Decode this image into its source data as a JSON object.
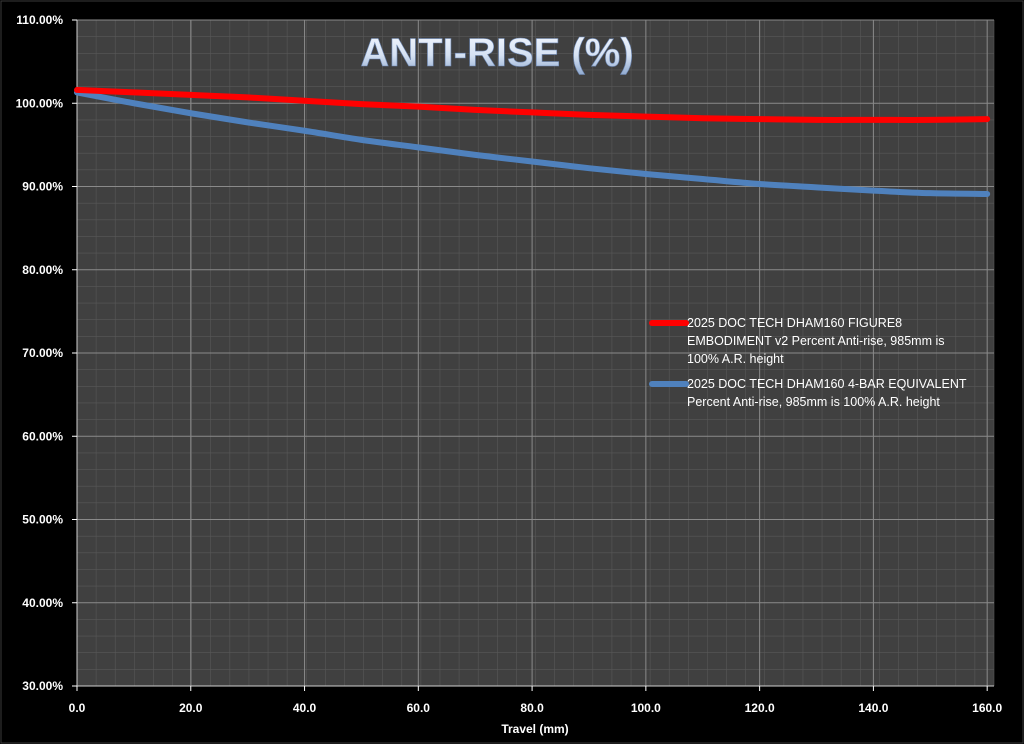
{
  "chart_data": {
    "type": "line",
    "title": "ANTI-RISE (%)",
    "xlabel": "Travel (mm)",
    "ylabel": "",
    "xlim": [
      0,
      160
    ],
    "ylim": [
      30,
      110
    ],
    "x_ticks": [
      "0.0",
      "20.0",
      "40.0",
      "60.0",
      "80.0",
      "100.0",
      "120.0",
      "140.0",
      "160.0"
    ],
    "y_ticks": [
      "30.00%",
      "40.00%",
      "50.00%",
      "60.00%",
      "70.00%",
      "80.00%",
      "90.00%",
      "100.00%",
      "110.00%"
    ],
    "grid": true,
    "legend_position": "right",
    "series": [
      {
        "name": "2025 DOC TECH DHAM160 FIGURE8 EMBODIMENT v2 Percent Anti-rise, 985mm is 100% A.R. height",
        "legend_lines": [
          "2025 DOC TECH DHAM160 FIGURE8",
          "EMBODIMENT v2 Percent Anti-rise, 985mm is",
          "100% A.R. height"
        ],
        "color": "#ff0000",
        "x": [
          0,
          10,
          20,
          30,
          40,
          50,
          60,
          70,
          80,
          90,
          100,
          110,
          120,
          130,
          140,
          150,
          160
        ],
        "y": [
          101.6,
          101.3,
          101.0,
          100.7,
          100.3,
          99.9,
          99.6,
          99.2,
          98.9,
          98.6,
          98.4,
          98.2,
          98.1,
          98.0,
          98.0,
          98.0,
          98.1
        ]
      },
      {
        "name": "2025 DOC TECH DHAM160 4-BAR EQUIVALENT Percent Anti-rise, 985mm is 100% A.R. height",
        "legend_lines": [
          "2025 DOC TECH DHAM160 4-BAR EQUIVALENT",
          "Percent Anti-rise, 985mm is 100% A.R. height"
        ],
        "color": "#4f81bd",
        "x": [
          0,
          10,
          20,
          30,
          40,
          50,
          60,
          70,
          80,
          90,
          100,
          110,
          120,
          130,
          140,
          150,
          160
        ],
        "y": [
          101.3,
          100.0,
          98.8,
          97.7,
          96.7,
          95.6,
          94.7,
          93.8,
          93.0,
          92.2,
          91.5,
          90.9,
          90.3,
          89.9,
          89.5,
          89.2,
          89.1
        ]
      }
    ]
  }
}
